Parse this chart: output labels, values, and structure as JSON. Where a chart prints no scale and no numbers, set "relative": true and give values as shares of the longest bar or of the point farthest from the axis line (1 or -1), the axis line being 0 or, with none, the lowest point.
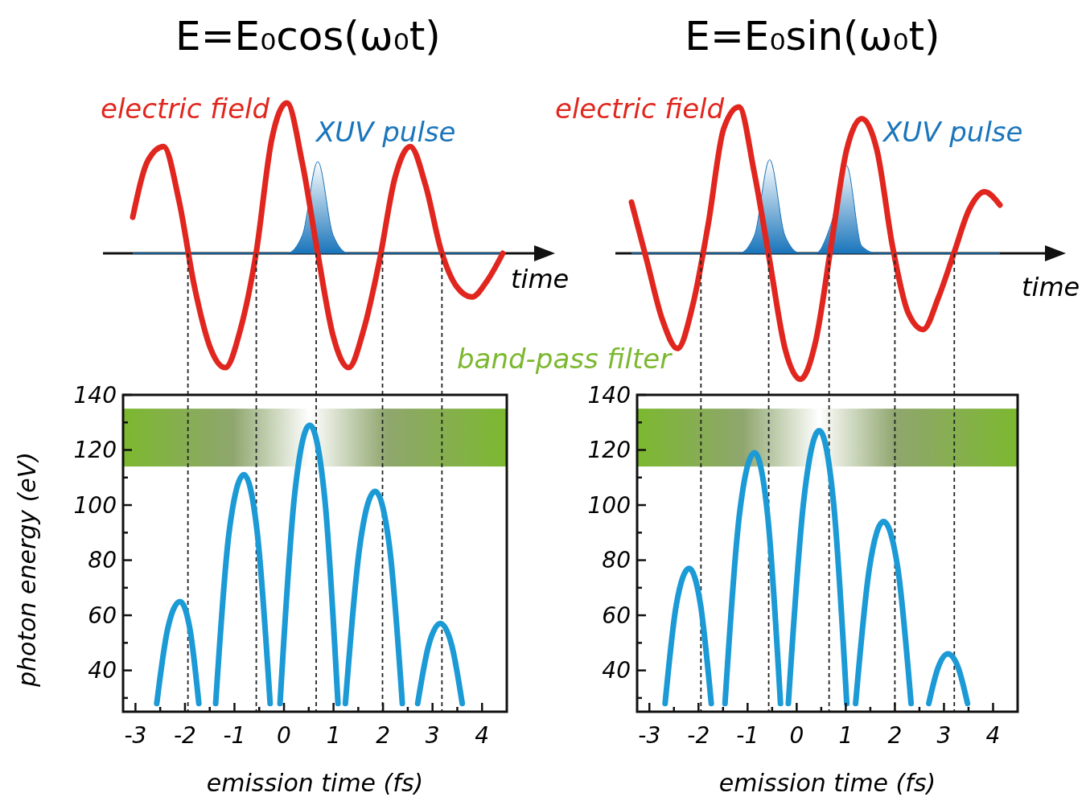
{
  "chart_data": [
    {
      "type": "line",
      "title": "E=E₀cos(ω₀t)",
      "xlabel": "time",
      "relative": true,
      "categories": [
        null,
        null,
        null,
        null,
        null,
        null,
        null,
        null,
        null,
        null,
        null,
        null,
        null,
        null,
        null,
        null,
        null,
        null,
        null,
        null,
        null,
        null,
        null,
        null,
        null
      ],
      "series": [
        {
          "name": "electric field",
          "color": "#e0261e",
          "values": [
            0.24,
            0.62,
            0.71,
            0.35,
            -0.22,
            -0.62,
            -0.76,
            -0.5,
            0,
            0.75,
            1,
            0.6,
            0,
            -0.55,
            -0.76,
            -0.5,
            -0.05,
            0.5,
            0.71,
            0.45,
            0.02,
            -0.22,
            -0.29,
            -0.18,
            0
          ]
        },
        {
          "name": "XUV pulse",
          "type": "area",
          "color": "#1a75bb",
          "values": [
            0,
            0,
            0,
            0,
            0,
            0,
            0,
            0,
            0,
            0,
            0,
            0.12,
            0.61,
            0.12,
            0,
            0,
            0,
            0,
            0,
            0,
            0,
            0,
            0,
            0,
            0
          ]
        }
      ]
    },
    {
      "type": "line",
      "title": "E=E₀sin(ω₀t)",
      "xlabel": "time",
      "relative": true,
      "categories": [
        null,
        null,
        null,
        null,
        null,
        null,
        null,
        null,
        null,
        null,
        null,
        null,
        null,
        null,
        null,
        null,
        null,
        null,
        null,
        null,
        null,
        null,
        null,
        null,
        null
      ],
      "series": [
        {
          "name": "electric field",
          "color": "#e0261e",
          "values": [
            0.35,
            -0.05,
            -0.45,
            -0.65,
            -0.35,
            0.2,
            0.85,
            1,
            0.55,
            -0.05,
            -0.65,
            -0.86,
            -0.6,
            0.05,
            0.7,
            0.92,
            0.7,
            0.05,
            -0.4,
            -0.52,
            -0.3,
            0,
            0.3,
            0.42,
            0.33
          ]
        },
        {
          "name": "XUV pulse",
          "type": "area",
          "color": "#1a75bb",
          "values": [
            0,
            0,
            0,
            0,
            0,
            0,
            0,
            0,
            0.12,
            0.64,
            0.12,
            0,
            0,
            0.2,
            0.6,
            0.05,
            0,
            0,
            0,
            0,
            0,
            0,
            0,
            0,
            0
          ]
        }
      ]
    },
    {
      "type": "line",
      "xlabel": "emission time (fs)",
      "ylabel": "photon energy (eV)",
      "xlim": [
        -3.25,
        4.5
      ],
      "ylim": [
        25,
        140
      ],
      "xticks": [
        -3,
        {
          "value": -2.5,
          "label": null
        },
        -2,
        {
          "value": -1.5,
          "label": null
        },
        -1,
        {
          "value": -0.5,
          "label": null
        },
        0,
        {
          "value": 0.5,
          "label": null
        },
        1,
        {
          "value": 1.5,
          "label": null
        },
        2,
        {
          "value": 2.5,
          "label": null
        },
        3,
        {
          "value": 3.5,
          "label": null
        },
        4
      ],
      "yticks": [
        {
          "value": 30,
          "label": null
        },
        40,
        {
          "value": 50,
          "label": null
        },
        60,
        {
          "value": 70,
          "label": null
        },
        80,
        {
          "value": 90,
          "label": null
        },
        100,
        {
          "value": 110,
          "label": null
        },
        120,
        {
          "value": 130,
          "label": null
        },
        140
      ],
      "series": [
        {
          "color": "#1b9ad6",
          "x": [
            -2.57,
            -2.35,
            -2.1,
            -1.9,
            -1.72,
            null,
            -1.38,
            -1.11,
            -0.81,
            -0.54,
            -0.28,
            null,
            -0.08,
            0.21,
            0.52,
            0.82,
            1.09,
            null,
            1.24,
            1.53,
            1.84,
            2.13,
            2.39,
            null,
            2.7,
            2.92,
            3.16,
            3.39,
            3.6
          ],
          "values": [
            28,
            55,
            65,
            55,
            28,
            null,
            28,
            90,
            111,
            90,
            28,
            null,
            28,
            103,
            129,
            103,
            28,
            null,
            28,
            85,
            105,
            85,
            28,
            null,
            28,
            49,
            57,
            49,
            28
          ]
        }
      ],
      "ref_lines": [
        {
          "axis": "x",
          "value": -1.94,
          "line_style": "dashed"
        },
        {
          "axis": "x",
          "value": -0.56,
          "line_style": "dashed"
        },
        {
          "axis": "x",
          "value": 0.65,
          "line_style": "dashed"
        },
        {
          "axis": "x",
          "value": 1.99,
          "line_style": "dashed"
        },
        {
          "axis": "x",
          "value": 3.19,
          "line_style": "dashed"
        }
      ],
      "bands": [
        {
          "axis": "y",
          "from": 114,
          "to": 135,
          "label": "band-pass filter",
          "color": "#7cb82f"
        }
      ]
    },
    {
      "type": "line",
      "xlabel": "emission time (fs)",
      "xlim": [
        -3.25,
        4.5
      ],
      "ylim": [
        25,
        140
      ],
      "xticks": [
        -3,
        {
          "value": -2.5,
          "label": null
        },
        -2,
        {
          "value": -1.5,
          "label": null
        },
        -1,
        {
          "value": -0.5,
          "label": null
        },
        0,
        {
          "value": 0.5,
          "label": null
        },
        1,
        {
          "value": 1.5,
          "label": null
        },
        2,
        {
          "value": 2.5,
          "label": null
        },
        3,
        {
          "value": 3.5,
          "label": null
        },
        4
      ],
      "yticks": [
        {
          "value": 30,
          "label": null
        },
        40,
        {
          "value": 50,
          "label": null
        },
        60,
        {
          "value": 70,
          "label": null
        },
        80,
        {
          "value": 90,
          "label": null
        },
        100,
        {
          "value": 110,
          "label": null
        },
        120,
        {
          "value": 130,
          "label": null
        },
        140
      ],
      "series": [
        {
          "color": "#1b9ad6",
          "x": [
            -2.68,
            -2.45,
            -2.19,
            -1.96,
            -1.74,
            null,
            -1.46,
            -1.17,
            -0.86,
            -0.59,
            -0.33,
            null,
            -0.17,
            0.14,
            0.46,
            0.75,
            1.02,
            null,
            1.2,
            1.48,
            1.77,
            2.06,
            2.33,
            null,
            2.69,
            2.88,
            3.08,
            3.29,
            3.48
          ],
          "values": [
            28,
            64,
            77,
            64,
            28,
            null,
            28,
            96,
            119,
            96,
            28,
            null,
            28,
            101,
            127,
            101,
            28,
            null,
            28,
            77,
            94,
            77,
            28,
            null,
            28,
            41,
            46,
            41,
            28
          ]
        }
      ],
      "ref_lines": [
        {
          "axis": "x",
          "value": -1.95,
          "line_style": "dashed"
        },
        {
          "axis": "x",
          "value": -0.57,
          "line_style": "dashed"
        },
        {
          "axis": "x",
          "value": 0.66,
          "line_style": "dashed"
        },
        {
          "axis": "x",
          "value": 2.0,
          "line_style": "dashed"
        },
        {
          "axis": "x",
          "value": 3.21,
          "line_style": "dashed"
        }
      ],
      "bands": [
        {
          "axis": "y",
          "from": 114,
          "to": 135,
          "color": "#7cb82f"
        }
      ]
    }
  ]
}
